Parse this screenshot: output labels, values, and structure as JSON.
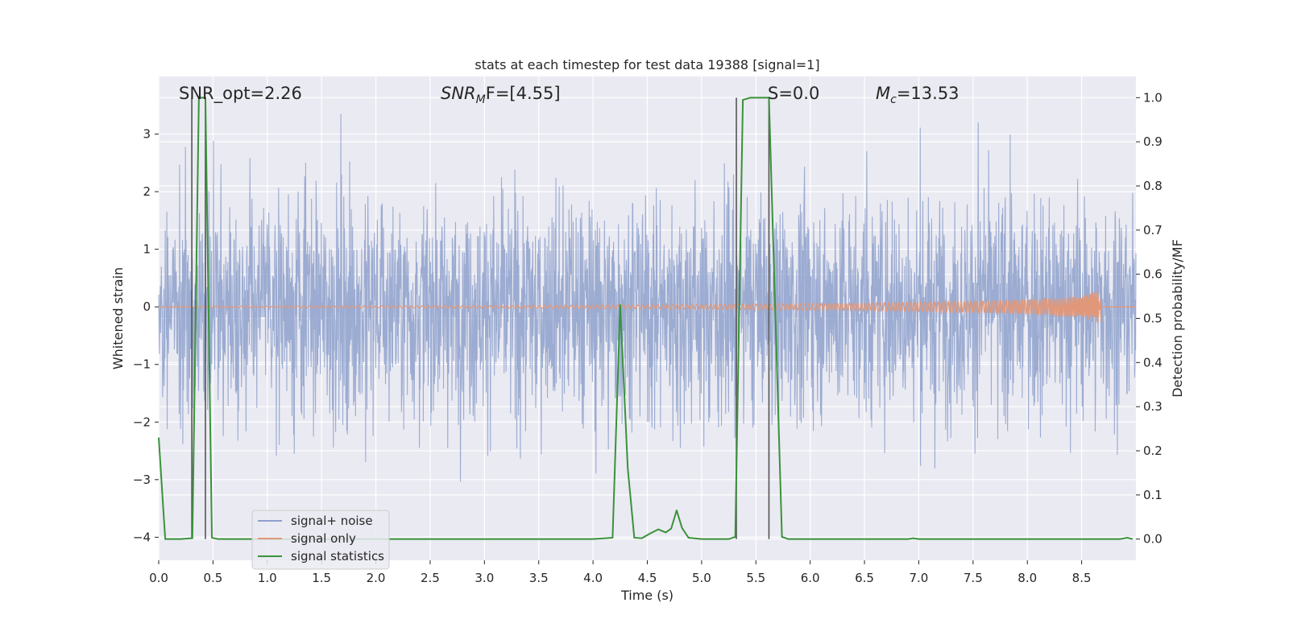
{
  "chart_data": {
    "type": "line",
    "title": "stats at each timestep for test data 19388 [signal=1]",
    "xlabel": "Time (s)",
    "ylabel_left": "Whitened strain",
    "ylabel_right": "Detection probability/MF",
    "xlim": [
      0.0,
      9.0
    ],
    "ylim_left": [
      -4.4,
      4.0
    ],
    "ylim_right": [
      -0.048,
      1.048
    ],
    "x_ticks": [
      "0.0",
      "0.5",
      "1.0",
      "1.5",
      "2.0",
      "2.5",
      "3.0",
      "3.5",
      "4.0",
      "4.5",
      "5.0",
      "5.5",
      "6.0",
      "6.5",
      "7.0",
      "7.5",
      "8.0",
      "8.5"
    ],
    "y_ticks_left": [
      "3",
      "2",
      "1",
      "0",
      "−1",
      "−2",
      "−3",
      "−4"
    ],
    "y_ticks_right": [
      "1.0",
      "0.9",
      "0.8",
      "0.7",
      "0.6",
      "0.5",
      "0.4",
      "0.3",
      "0.2",
      "0.1",
      "0.0"
    ],
    "grid": true,
    "legend_position": "lower-left",
    "colors": {
      "background": "#eaeaf2",
      "grid": "#ffffff",
      "noise": "#8da0cb",
      "signal": "#e1987a",
      "statistics": "#3a923a",
      "markers": "#555555"
    },
    "annotations": {
      "snr_opt": "SNR_opt=2.26",
      "snr_mf_main": "SNR",
      "snr_mf_sub": "M",
      "snr_mf_tail": "F=[4.55]",
      "s_label": "S=0.0",
      "mc_main": "M",
      "mc_sub": "c",
      "mc_tail": "=13.53"
    },
    "vertical_markers": [
      0.305,
      0.43,
      5.32,
      5.62
    ],
    "series": [
      {
        "name": "signal+ noise",
        "description_values": "whitened strain noise, envelope roughly ±1.3 with spikes to about ±3.5",
        "range": [
          -4.0,
          3.6
        ]
      },
      {
        "name": "signal only",
        "chirp_end_time": 8.68,
        "chirp_max_amplitude": 0.38
      },
      {
        "name": "signal statistics",
        "points": [
          [
            0.0,
            0.23
          ],
          [
            0.06,
            0.0
          ],
          [
            0.2,
            0.0
          ],
          [
            0.3,
            0.002
          ],
          [
            0.31,
            0.002
          ],
          [
            0.37,
            1.0
          ],
          [
            0.43,
            1.0
          ],
          [
            0.49,
            0.003
          ],
          [
            0.55,
            0.0
          ],
          [
            1.0,
            0.0
          ],
          [
            2.0,
            0.0
          ],
          [
            3.0,
            0.0
          ],
          [
            4.0,
            0.0
          ],
          [
            4.18,
            0.003
          ],
          [
            4.25,
            0.53
          ],
          [
            4.32,
            0.16
          ],
          [
            4.38,
            0.003
          ],
          [
            4.45,
            0.002
          ],
          [
            4.52,
            0.012
          ],
          [
            4.6,
            0.022
          ],
          [
            4.67,
            0.015
          ],
          [
            4.72,
            0.024
          ],
          [
            4.77,
            0.065
          ],
          [
            4.82,
            0.025
          ],
          [
            4.88,
            0.003
          ],
          [
            5.0,
            0.0
          ],
          [
            5.25,
            0.0
          ],
          [
            5.31,
            0.005
          ],
          [
            5.38,
            0.995
          ],
          [
            5.45,
            1.0
          ],
          [
            5.55,
            1.0
          ],
          [
            5.62,
            1.0
          ],
          [
            5.74,
            0.005
          ],
          [
            5.8,
            0.0
          ],
          [
            6.9,
            0.0
          ],
          [
            6.95,
            0.002
          ],
          [
            7.0,
            0.0
          ],
          [
            8.0,
            0.0
          ],
          [
            8.85,
            0.0
          ],
          [
            8.92,
            0.003
          ],
          [
            8.97,
            0.0
          ]
        ]
      }
    ]
  }
}
